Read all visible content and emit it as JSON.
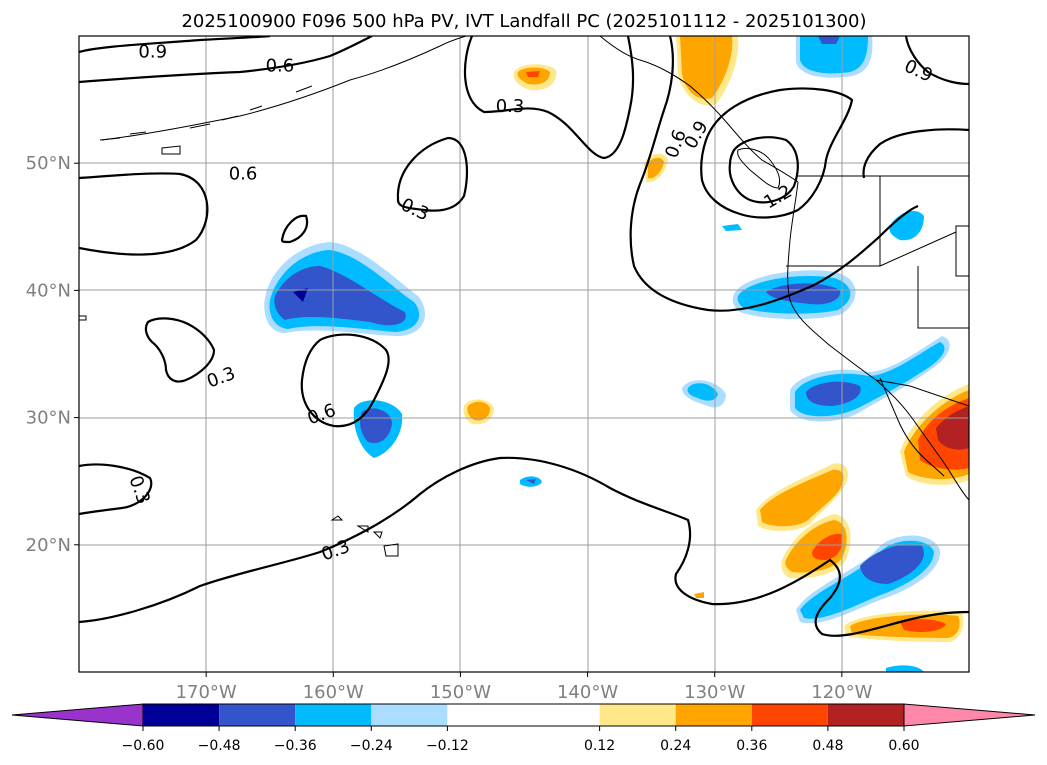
{
  "chart_data": {
    "type": "map-contour",
    "title": "2025100900 F096 500 hPa PV, IVT Landfall PC (2025101112 - 2025101300)",
    "lon_range": [
      -180,
      -110
    ],
    "lat_range": [
      10,
      60
    ],
    "xticks": [
      {
        "lon": -170,
        "label": "170°W"
      },
      {
        "lon": -160,
        "label": "160°W"
      },
      {
        "lon": -150,
        "label": "150°W"
      },
      {
        "lon": -140,
        "label": "140°W"
      },
      {
        "lon": -130,
        "label": "130°W"
      },
      {
        "lon": -120,
        "label": "120°W"
      }
    ],
    "yticks": [
      {
        "lat": 20,
        "label": "20°N"
      },
      {
        "lat": 30,
        "label": "30°N"
      },
      {
        "lat": 40,
        "label": "40°N"
      },
      {
        "lat": 50,
        "label": "50°N"
      }
    ],
    "colorbar": {
      "bounds": [
        -0.6,
        -0.48,
        -0.36,
        -0.24,
        -0.12,
        0.12,
        0.24,
        0.36,
        0.48,
        0.6
      ],
      "tick_labels": [
        "−0.60",
        "−0.48",
        "−0.36",
        "−0.24",
        "−0.12",
        "0.12",
        "0.24",
        "0.36",
        "0.48",
        "0.60"
      ],
      "colors": [
        "#9933cc",
        "#000099",
        "#3355cc",
        "#00bbff",
        "#aaddff",
        "#ffffff",
        "#ffe88a",
        "#ffa500",
        "#ff4500",
        "#b22222",
        "#ff88aa"
      ]
    },
    "contour_labels": [
      {
        "text": "0.9",
        "lon": -174.2,
        "lat": 58.7,
        "angle": 0
      },
      {
        "text": "0.6",
        "lon": -164.2,
        "lat": 57.6,
        "angle": 0
      },
      {
        "text": "0.6",
        "lon": -167.1,
        "lat": 49.1,
        "angle": 0
      },
      {
        "text": "0.3",
        "lon": -146.1,
        "lat": 54.4,
        "angle": 0
      },
      {
        "text": "0.3",
        "lon": -153.6,
        "lat": 46.3,
        "angle": 25
      },
      {
        "text": "0.3",
        "lon": -168.8,
        "lat": 33.1,
        "angle": -20
      },
      {
        "text": "0.3",
        "lon": -175.3,
        "lat": 24.3,
        "angle": 70
      },
      {
        "text": "0.3",
        "lon": -159.8,
        "lat": 19.5,
        "angle": -20
      },
      {
        "text": "0.6",
        "lon": -160.9,
        "lat": 30.2,
        "angle": -20
      },
      {
        "text": "0.6",
        "lon": -133.0,
        "lat": 51.5,
        "angle": -70
      },
      {
        "text": "0.9",
        "lon": -131.4,
        "lat": 52.2,
        "angle": -60
      },
      {
        "text": "1.2",
        "lon": -125.0,
        "lat": 47.3,
        "angle": -30
      },
      {
        "text": "0.9",
        "lon": -114.0,
        "lat": 57.2,
        "angle": 25
      }
    ]
  }
}
